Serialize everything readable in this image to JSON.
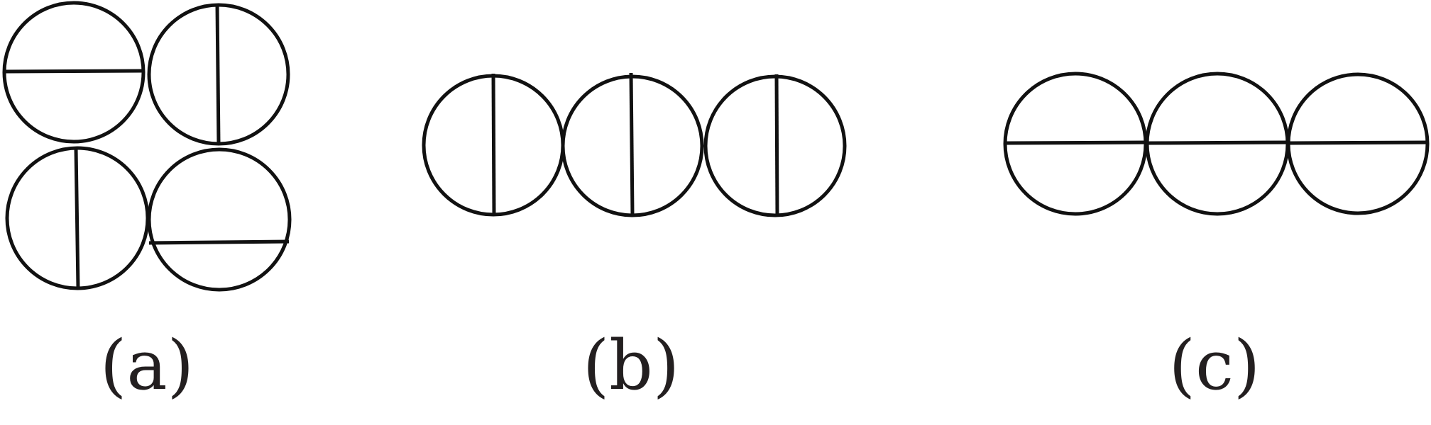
{
  "panels": [
    {
      "label": "(a)",
      "dividers": [
        "horizontal",
        "vertical",
        "vertical",
        "horizontal"
      ]
    },
    {
      "label": "(b)",
      "dividers": [
        "vertical",
        "vertical",
        "vertical"
      ]
    },
    {
      "label": "(c)",
      "dividers": [
        "horizontal",
        "horizontal",
        "horizontal"
      ]
    }
  ],
  "colors": {
    "stroke": "#111111",
    "background": "#ffffff",
    "text": "#231f20"
  }
}
